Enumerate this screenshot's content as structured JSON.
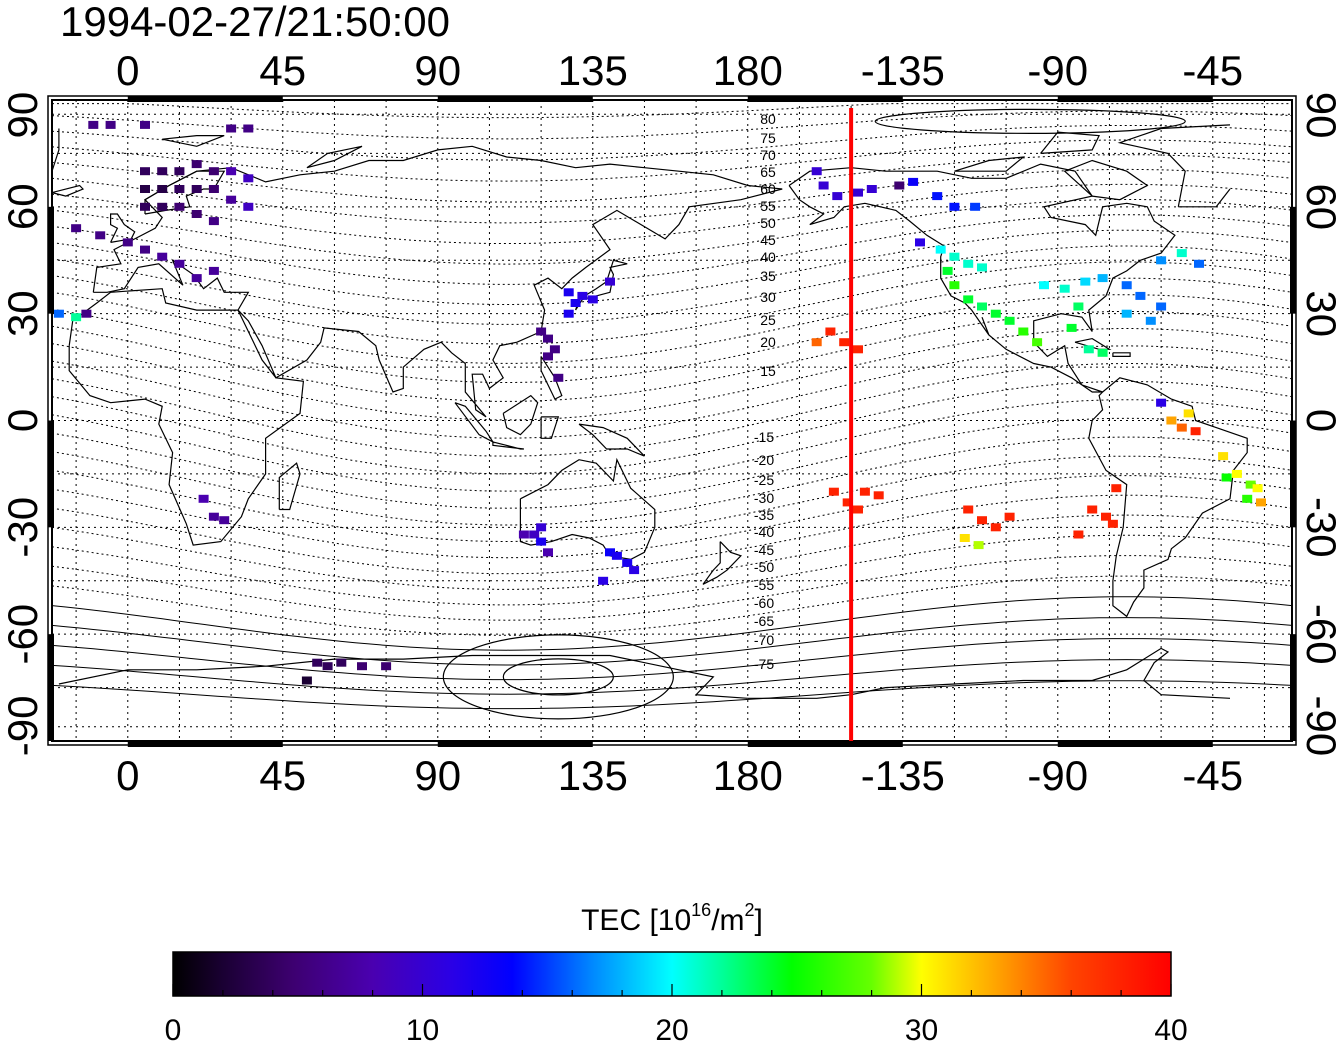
{
  "title": "1994-02-27/21:50:00",
  "map": {
    "x_axis_ticks": [
      "0",
      "45",
      "90",
      "135",
      "180",
      "-135",
      "-90",
      "-45"
    ],
    "y_axis_ticks": [
      "90",
      "60",
      "30",
      "0",
      "-30",
      "-60",
      "-90"
    ],
    "marker_longitude": -150,
    "marker_color": "#ff0000",
    "contour_labels_north": [
      "80",
      "75",
      "70",
      "65",
      "60",
      "55",
      "50",
      "45",
      "40",
      "35",
      "30",
      "25",
      "20",
      "15"
    ],
    "contour_labels_south": [
      "-15",
      "-20",
      "-25",
      "-30",
      "-35",
      "-40",
      "-45",
      "-50",
      "-55",
      "-60",
      "-65",
      "-70",
      "-75"
    ],
    "grid": true,
    "coastlines": true
  },
  "chart_data": {
    "type": "heatmap",
    "title": "1994-02-27/21:50:00",
    "xlabel": "",
    "ylabel": "",
    "xlim": [
      -22,
      338
    ],
    "ylim": [
      -90,
      90
    ],
    "value_name": "TEC",
    "units": "10^16/m^2",
    "colorbar": {
      "label_prefix": "TEC  [10",
      "label_exp": "16",
      "label_mid": "/m",
      "label_exp2": "2",
      "label_suffix": "]",
      "range": [
        0,
        40
      ],
      "ticks": [
        "0",
        "10",
        "20",
        "30",
        "40"
      ]
    },
    "points": [
      [
        -10,
        83,
        6
      ],
      [
        -5,
        83,
        6
      ],
      [
        5,
        83,
        6
      ],
      [
        30,
        82,
        6
      ],
      [
        35,
        82,
        6
      ],
      [
        5,
        70,
        4
      ],
      [
        10,
        70,
        4
      ],
      [
        15,
        70,
        4
      ],
      [
        20,
        72,
        5
      ],
      [
        25,
        70,
        5
      ],
      [
        30,
        70,
        8
      ],
      [
        35,
        68,
        9
      ],
      [
        5,
        65,
        3
      ],
      [
        10,
        65,
        3
      ],
      [
        15,
        65,
        4
      ],
      [
        20,
        65,
        4
      ],
      [
        25,
        65,
        5
      ],
      [
        30,
        62,
        7
      ],
      [
        35,
        60,
        9
      ],
      [
        5,
        60,
        4
      ],
      [
        10,
        60,
        4
      ],
      [
        15,
        60,
        5
      ],
      [
        20,
        58,
        5
      ],
      [
        25,
        56,
        6
      ],
      [
        -15,
        54,
        6
      ],
      [
        -8,
        52,
        6
      ],
      [
        0,
        50,
        6
      ],
      [
        5,
        48,
        6
      ],
      [
        10,
        46,
        7
      ],
      [
        15,
        44,
        7
      ],
      [
        20,
        40,
        7
      ],
      [
        25,
        42,
        7
      ],
      [
        -20,
        30,
        16
      ],
      [
        -15,
        29,
        22
      ],
      [
        -12,
        30,
        6
      ],
      [
        22,
        -22,
        8
      ],
      [
        25,
        -27,
        7
      ],
      [
        28,
        -28,
        7
      ],
      [
        128,
        36,
        12
      ],
      [
        130,
        33,
        12
      ],
      [
        132,
        35,
        11
      ],
      [
        135,
        34,
        11
      ],
      [
        128,
        30,
        12
      ],
      [
        140,
        39,
        10
      ],
      [
        120,
        25,
        6
      ],
      [
        122,
        23,
        6
      ],
      [
        124,
        20,
        6
      ],
      [
        122,
        18,
        6
      ],
      [
        125,
        12,
        6
      ],
      [
        115,
        -32,
        8
      ],
      [
        118,
        -32,
        9
      ],
      [
        120,
        -30,
        10
      ],
      [
        120,
        -34,
        12
      ],
      [
        122,
        -37,
        8
      ],
      [
        140,
        -37,
        13
      ],
      [
        142,
        -38,
        12
      ],
      [
        145,
        -40,
        12
      ],
      [
        147,
        -42,
        11
      ],
      [
        138,
        -45,
        11
      ],
      [
        55,
        -68,
        4
      ],
      [
        58,
        -69,
        4
      ],
      [
        62,
        -68,
        4
      ],
      [
        68,
        -69,
        5
      ],
      [
        75,
        -69,
        5
      ],
      [
        52,
        -73,
        2
      ],
      [
        200,
        70,
        10
      ],
      [
        202,
        66,
        10
      ],
      [
        206,
        63,
        10
      ],
      [
        212,
        64,
        10
      ],
      [
        216,
        65,
        10
      ],
      [
        224,
        66,
        5
      ],
      [
        228,
        67,
        13
      ],
      [
        235,
        63,
        14
      ],
      [
        240,
        60,
        14
      ],
      [
        246,
        60,
        15
      ],
      [
        230,
        50,
        11
      ],
      [
        236,
        48,
        20
      ],
      [
        240,
        46,
        21
      ],
      [
        244,
        44,
        21
      ],
      [
        248,
        43,
        21
      ],
      [
        238,
        42,
        24
      ],
      [
        240,
        38,
        26
      ],
      [
        244,
        34,
        24
      ],
      [
        248,
        32,
        23
      ],
      [
        252,
        30,
        24
      ],
      [
        256,
        28,
        24
      ],
      [
        260,
        25,
        26
      ],
      [
        264,
        22,
        27
      ],
      [
        266,
        38,
        20
      ],
      [
        272,
        37,
        21
      ],
      [
        278,
        39,
        19
      ],
      [
        283,
        40,
        18
      ],
      [
        276,
        32,
        23
      ],
      [
        274,
        26,
        24
      ],
      [
        290,
        38,
        16
      ],
      [
        294,
        35,
        16
      ],
      [
        300,
        32,
        16
      ],
      [
        297,
        28,
        17
      ],
      [
        290,
        30,
        18
      ],
      [
        300,
        45,
        17
      ],
      [
        306,
        47,
        21
      ],
      [
        311,
        44,
        16
      ],
      [
        279,
        20,
        22
      ],
      [
        283,
        19,
        23
      ],
      [
        204,
        25,
        38
      ],
      [
        208,
        22,
        38
      ],
      [
        212,
        20,
        38
      ],
      [
        200,
        22,
        35
      ],
      [
        205,
        -20,
        38
      ],
      [
        209,
        -23,
        38
      ],
      [
        214,
        -20,
        38
      ],
      [
        218,
        -21,
        38
      ],
      [
        212,
        -25,
        38
      ],
      [
        244,
        -25,
        38
      ],
      [
        248,
        -28,
        38
      ],
      [
        252,
        -30,
        38
      ],
      [
        256,
        -27,
        38
      ],
      [
        243,
        -33,
        31
      ],
      [
        247,
        -35,
        29
      ],
      [
        280,
        -25,
        38
      ],
      [
        284,
        -27,
        38
      ],
      [
        286,
        -29,
        38
      ],
      [
        287,
        -19,
        38
      ],
      [
        276,
        -32,
        38
      ],
      [
        300,
        5,
        11
      ],
      [
        303,
        0,
        33
      ],
      [
        306,
        -2,
        35
      ],
      [
        308,
        2,
        31
      ],
      [
        310,
        -3,
        38
      ],
      [
        318,
        -10,
        31
      ],
      [
        322,
        -15,
        30
      ],
      [
        326,
        -18,
        28
      ],
      [
        328,
        -19,
        30
      ],
      [
        325,
        -22,
        26
      ],
      [
        329,
        -23,
        33
      ],
      [
        319,
        -16,
        25
      ]
    ]
  }
}
